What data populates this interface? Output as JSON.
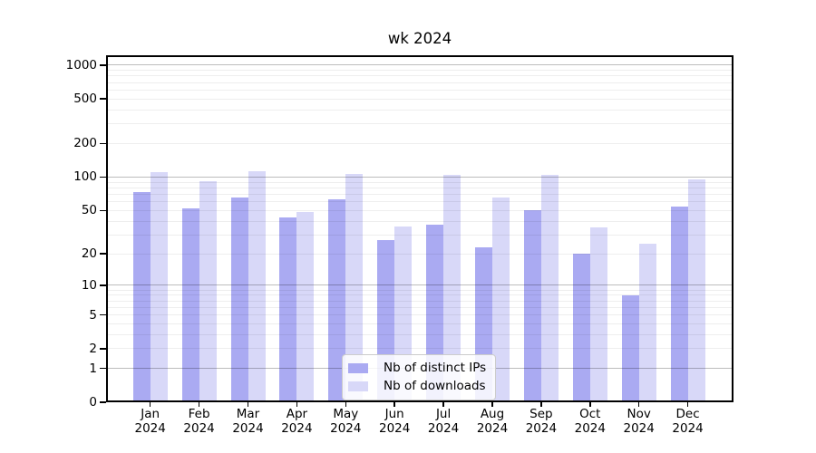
{
  "chart_data": {
    "type": "bar",
    "title": "wk 2024",
    "categories": [
      "Jan",
      "Feb",
      "Mar",
      "Apr",
      "May",
      "Jun",
      "Jul",
      "Aug",
      "Sep",
      "Oct",
      "Nov",
      "Dec"
    ],
    "x_tick_second_line": "2024",
    "series": [
      {
        "name": "Nb of distinct IPs",
        "color": "#aaaaf2",
        "values": [
          73,
          52,
          66,
          43,
          63,
          27,
          37,
          23,
          50,
          20,
          8,
          54
        ]
      },
      {
        "name": "Nb of downloads",
        "color": "#d8d8f8",
        "values": [
          110,
          91,
          113,
          48,
          106,
          36,
          104,
          65,
          105,
          35,
          25,
          95
        ]
      }
    ],
    "yaxis": {
      "scale": "log10(value+1)",
      "tick_values": [
        0,
        1,
        2,
        5,
        10,
        20,
        50,
        100,
        200,
        500,
        1000
      ],
      "tick_labels": [
        "0",
        "1",
        "2",
        "5",
        "10",
        "20",
        "50",
        "100",
        "200",
        "500",
        "1000"
      ],
      "range": [
        0,
        1250
      ]
    },
    "xaxis": {
      "tick_labels_line1": [
        "Jan",
        "Feb",
        "Mar",
        "Apr",
        "May",
        "Jun",
        "Jul",
        "Aug",
        "Sep",
        "Oct",
        "Nov",
        "Dec"
      ],
      "tick_labels_line2": "2024"
    },
    "grid": {
      "on": true,
      "major_values": [
        1,
        10,
        100,
        1000
      ],
      "minor_values": [
        2,
        3,
        4,
        5,
        6,
        7,
        8,
        9,
        20,
        30,
        40,
        50,
        60,
        70,
        80,
        90,
        200,
        300,
        400,
        500,
        600,
        700,
        800,
        900
      ]
    },
    "legend": {
      "position": "lower center",
      "entries": [
        "Nb of distinct IPs",
        "Nb of downloads"
      ]
    },
    "colors": {
      "bar_dark": "#aaaaf2",
      "bar_light": "#d8d8f8",
      "grid_major": "#bdbdbd",
      "grid_minor": "#ededed",
      "spine": "#000000"
    }
  }
}
